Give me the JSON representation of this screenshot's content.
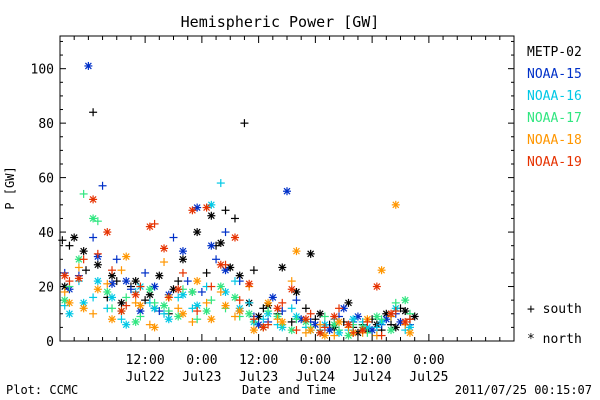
{
  "chart_data": {
    "type": "scatter",
    "title": "Hemispheric Power [GW]",
    "ylabel": "P [GW]",
    "xlabel": "Date and Time",
    "ylim": [
      0,
      112
    ],
    "xlim_hours": [
      0,
      96
    ],
    "y_ticks": [
      0,
      20,
      40,
      60,
      80,
      100
    ],
    "x_ticks": [
      {
        "h": 18,
        "time": "12:00",
        "date": "Jul22"
      },
      {
        "h": 30,
        "time": "0:00",
        "date": "Jul23"
      },
      {
        "h": 42,
        "time": "12:00",
        "date": "Jul23"
      },
      {
        "h": 54,
        "time": "0:00",
        "date": "Jul24"
      },
      {
        "h": 66,
        "time": "12:00",
        "date": "Jul24"
      },
      {
        "h": 78,
        "time": "0:00",
        "date": "Jul25"
      }
    ],
    "x_axis_note": "x values are hours from the left edge of the axis (Jul 21 ~18:00); axis spans 2011-07-21 18:00 to 2011-07-25 18:00 approx.",
    "marker_legend": [
      {
        "symbol": "+",
        "label": "south"
      },
      {
        "symbol": "*",
        "label": "north"
      }
    ],
    "series": [
      {
        "name": "METP-02",
        "color": "#000000",
        "south": [
          [
            0.5,
            37
          ],
          [
            2,
            35
          ],
          [
            5.5,
            26
          ],
          [
            7,
            84
          ],
          [
            10,
            16
          ],
          [
            12,
            22
          ],
          [
            15,
            20
          ],
          [
            18,
            15
          ],
          [
            20,
            12
          ],
          [
            23,
            10
          ],
          [
            25,
            22
          ],
          [
            28,
            18
          ],
          [
            31,
            25
          ],
          [
            33,
            35
          ],
          [
            35,
            48
          ],
          [
            37,
            45
          ],
          [
            39,
            80
          ],
          [
            41,
            26
          ],
          [
            43,
            12
          ],
          [
            46,
            10
          ],
          [
            49,
            7
          ],
          [
            52,
            12
          ],
          [
            54,
            8
          ],
          [
            57,
            6
          ],
          [
            60,
            7
          ],
          [
            62,
            5
          ],
          [
            64,
            6
          ],
          [
            66,
            8
          ],
          [
            68,
            4
          ],
          [
            70,
            6
          ],
          [
            72,
            12
          ],
          [
            74,
            8
          ]
        ],
        "north": [
          [
            1,
            20
          ],
          [
            3,
            38
          ],
          [
            5,
            33
          ],
          [
            8,
            28
          ],
          [
            11,
            24
          ],
          [
            13,
            14
          ],
          [
            16,
            22
          ],
          [
            19,
            17
          ],
          [
            21,
            24
          ],
          [
            24,
            19
          ],
          [
            26,
            30
          ],
          [
            29,
            40
          ],
          [
            32,
            46
          ],
          [
            34,
            36
          ],
          [
            36,
            27
          ],
          [
            38,
            24
          ],
          [
            40,
            14
          ],
          [
            42,
            9
          ],
          [
            44,
            13
          ],
          [
            47,
            27
          ],
          [
            50,
            18
          ],
          [
            53,
            32
          ],
          [
            55,
            10
          ],
          [
            58,
            5
          ],
          [
            61,
            14
          ],
          [
            63,
            3
          ],
          [
            65,
            4
          ],
          [
            67,
            6
          ],
          [
            69,
            10
          ],
          [
            71,
            5
          ],
          [
            73,
            11
          ],
          [
            75,
            9
          ]
        ]
      },
      {
        "name": "NOAA-15",
        "color": "#0030c8",
        "south": [
          [
            1,
            25
          ],
          [
            4,
            24
          ],
          [
            7,
            38
          ],
          [
            9,
            57
          ],
          [
            12,
            30
          ],
          [
            15,
            19
          ],
          [
            18,
            25
          ],
          [
            21,
            11
          ],
          [
            24,
            38
          ],
          [
            27,
            22
          ],
          [
            30,
            18
          ],
          [
            33,
            30
          ],
          [
            35,
            40
          ],
          [
            38,
            22
          ],
          [
            41,
            9
          ],
          [
            44,
            7
          ],
          [
            47,
            11
          ],
          [
            50,
            15
          ],
          [
            53,
            7
          ],
          [
            56,
            6
          ],
          [
            59,
            9
          ],
          [
            62,
            7
          ],
          [
            65,
            5
          ],
          [
            68,
            6
          ],
          [
            71,
            10
          ],
          [
            74,
            6
          ]
        ],
        "north": [
          [
            2,
            19
          ],
          [
            6,
            101
          ],
          [
            8,
            31
          ],
          [
            11,
            21
          ],
          [
            14,
            22
          ],
          [
            17,
            11
          ],
          [
            20,
            20
          ],
          [
            23,
            17
          ],
          [
            26,
            33
          ],
          [
            29,
            49
          ],
          [
            32,
            35
          ],
          [
            35,
            26
          ],
          [
            38,
            11
          ],
          [
            42,
            6
          ],
          [
            45,
            16
          ],
          [
            48,
            55
          ],
          [
            51,
            8
          ],
          [
            54,
            6
          ],
          [
            57,
            4
          ],
          [
            60,
            12
          ],
          [
            63,
            9
          ],
          [
            66,
            4
          ],
          [
            69,
            8
          ],
          [
            72,
            7
          ]
        ]
      },
      {
        "name": "NOAA-16",
        "color": "#00c8e6",
        "south": [
          [
            1,
            13
          ],
          [
            4,
            22
          ],
          [
            7,
            16
          ],
          [
            10,
            12
          ],
          [
            13,
            8
          ],
          [
            16,
            18
          ],
          [
            19,
            14
          ],
          [
            22,
            10
          ],
          [
            25,
            16
          ],
          [
            28,
            12
          ],
          [
            31,
            20
          ],
          [
            34,
            58
          ],
          [
            37,
            22
          ],
          [
            40,
            14
          ],
          [
            43,
            8
          ],
          [
            46,
            6
          ],
          [
            49,
            12
          ],
          [
            52,
            5
          ],
          [
            55,
            4
          ],
          [
            58,
            8
          ],
          [
            61,
            4
          ],
          [
            64,
            7
          ],
          [
            67,
            5
          ],
          [
            70,
            9
          ],
          [
            73,
            4
          ]
        ],
        "north": [
          [
            2,
            10
          ],
          [
            5,
            14
          ],
          [
            8,
            22
          ],
          [
            11,
            16
          ],
          [
            14,
            6
          ],
          [
            17,
            20
          ],
          [
            20,
            12
          ],
          [
            23,
            8
          ],
          [
            26,
            17
          ],
          [
            29,
            13
          ],
          [
            32,
            50
          ],
          [
            35,
            18
          ],
          [
            38,
            12
          ],
          [
            41,
            7
          ],
          [
            44,
            10
          ],
          [
            47,
            5
          ],
          [
            50,
            9
          ],
          [
            53,
            4
          ],
          [
            56,
            6
          ],
          [
            59,
            3
          ],
          [
            62,
            8
          ],
          [
            65,
            5
          ],
          [
            68,
            7
          ],
          [
            71,
            12
          ],
          [
            74,
            5
          ]
        ]
      },
      {
        "name": "NOAA-17",
        "color": "#30e680",
        "south": [
          [
            2,
            20
          ],
          [
            5,
            54
          ],
          [
            8,
            44
          ],
          [
            11,
            12
          ],
          [
            14,
            16
          ],
          [
            17,
            9
          ],
          [
            20,
            14
          ],
          [
            23,
            11
          ],
          [
            26,
            19
          ],
          [
            29,
            8
          ],
          [
            32,
            15
          ],
          [
            35,
            12
          ],
          [
            38,
            9
          ],
          [
            41,
            7
          ],
          [
            44,
            11
          ],
          [
            47,
            6
          ],
          [
            50,
            8
          ],
          [
            53,
            5
          ],
          [
            56,
            9
          ],
          [
            59,
            4
          ],
          [
            62,
            6
          ],
          [
            65,
            3
          ],
          [
            68,
            8
          ],
          [
            71,
            14
          ],
          [
            74,
            10
          ]
        ],
        "north": [
          [
            1,
            15
          ],
          [
            4,
            30
          ],
          [
            7,
            45
          ],
          [
            10,
            18
          ],
          [
            13,
            11
          ],
          [
            16,
            7
          ],
          [
            19,
            19
          ],
          [
            22,
            13
          ],
          [
            25,
            9
          ],
          [
            28,
            18
          ],
          [
            31,
            11
          ],
          [
            34,
            20
          ],
          [
            37,
            16
          ],
          [
            40,
            10
          ],
          [
            43,
            5
          ],
          [
            46,
            9
          ],
          [
            49,
            4
          ],
          [
            52,
            7
          ],
          [
            55,
            3
          ],
          [
            58,
            6
          ],
          [
            61,
            2
          ],
          [
            64,
            5
          ],
          [
            67,
            9
          ],
          [
            70,
            4
          ],
          [
            73,
            15
          ]
        ]
      },
      {
        "name": "NOAA-18",
        "color": "#ff9600",
        "south": [
          [
            1,
            18
          ],
          [
            4,
            27
          ],
          [
            7,
            10
          ],
          [
            10,
            21
          ],
          [
            13,
            26
          ],
          [
            16,
            14
          ],
          [
            19,
            6
          ],
          [
            22,
            29
          ],
          [
            25,
            12
          ],
          [
            28,
            7
          ],
          [
            31,
            14
          ],
          [
            34,
            18
          ],
          [
            37,
            9
          ],
          [
            40,
            20
          ],
          [
            43,
            5
          ],
          [
            46,
            8
          ],
          [
            49,
            22
          ],
          [
            52,
            3
          ],
          [
            55,
            6
          ],
          [
            58,
            2
          ],
          [
            61,
            5
          ],
          [
            64,
            3
          ],
          [
            67,
            2
          ],
          [
            70,
            9
          ],
          [
            73,
            6
          ]
        ],
        "north": [
          [
            2,
            14
          ],
          [
            5,
            12
          ],
          [
            8,
            19
          ],
          [
            11,
            8
          ],
          [
            14,
            31
          ],
          [
            17,
            13
          ],
          [
            20,
            5
          ],
          [
            23,
            16
          ],
          [
            26,
            10
          ],
          [
            29,
            22
          ],
          [
            32,
            8
          ],
          [
            35,
            13
          ],
          [
            38,
            11
          ],
          [
            41,
            4
          ],
          [
            44,
            14
          ],
          [
            47,
            7
          ],
          [
            50,
            33
          ],
          [
            53,
            4
          ],
          [
            56,
            2
          ],
          [
            59,
            7
          ],
          [
            62,
            3
          ],
          [
            65,
            8
          ],
          [
            68,
            26
          ],
          [
            71,
            50
          ],
          [
            74,
            3
          ]
        ]
      },
      {
        "name": "NOAA-19",
        "color": "#e63200",
        "south": [
          [
            2,
            22
          ],
          [
            5,
            30
          ],
          [
            8,
            32
          ],
          [
            11,
            26
          ],
          [
            14,
            13
          ],
          [
            17,
            20
          ],
          [
            20,
            43
          ],
          [
            23,
            16
          ],
          [
            26,
            25
          ],
          [
            29,
            11
          ],
          [
            32,
            20
          ],
          [
            35,
            28
          ],
          [
            38,
            15
          ],
          [
            41,
            8
          ],
          [
            44,
            6
          ],
          [
            47,
            14
          ],
          [
            50,
            4
          ],
          [
            53,
            10
          ],
          [
            56,
            5
          ],
          [
            59,
            12
          ],
          [
            62,
            3
          ],
          [
            65,
            7
          ],
          [
            68,
            2
          ],
          [
            71,
            11
          ],
          [
            74,
            8
          ]
        ],
        "north": [
          [
            1,
            24
          ],
          [
            4,
            23
          ],
          [
            7,
            52
          ],
          [
            10,
            40
          ],
          [
            13,
            11
          ],
          [
            16,
            17
          ],
          [
            19,
            42
          ],
          [
            22,
            34
          ],
          [
            25,
            19
          ],
          [
            28,
            48
          ],
          [
            31,
            49
          ],
          [
            34,
            28
          ],
          [
            37,
            38
          ],
          [
            40,
            21
          ],
          [
            43,
            5
          ],
          [
            46,
            12
          ],
          [
            49,
            19
          ],
          [
            52,
            8
          ],
          [
            55,
            3
          ],
          [
            58,
            9
          ],
          [
            61,
            6
          ],
          [
            64,
            4
          ],
          [
            67,
            20
          ],
          [
            70,
            10
          ],
          [
            73,
            7
          ]
        ]
      }
    ]
  },
  "footer": {
    "plot_source": "Plot: CCMC",
    "timestamp": "2011/07/25 00:15:07"
  }
}
